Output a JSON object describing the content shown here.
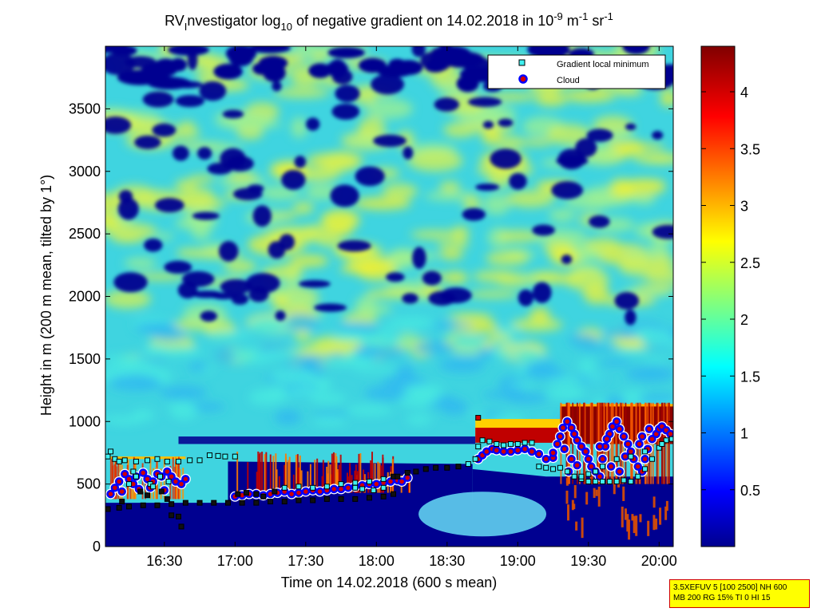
{
  "chart_data": {
    "type": "heatmap",
    "title": {
      "main": "RV",
      "sub": "I",
      "text1": "nvestigator log",
      "log_base": "10",
      "text2": " of negative gradient on 14.02.2018 in 10",
      "exp1": "-9",
      "text3": " m",
      "exp2": "-1",
      "text4": " sr",
      "exp3": "-1"
    },
    "xlabel": "Time on 14.02.2018 (600 s mean)",
    "ylabel": "Height in m (200 m mean, tilted by 1°)",
    "x_range_hours": [
      16.083,
      20.1
    ],
    "ylim": [
      0,
      4000
    ],
    "x_ticks": [
      "16:30",
      "17:00",
      "17:30",
      "18:00",
      "18:30",
      "19:00",
      "19:30",
      "20:00"
    ],
    "x_tick_hours": [
      16.5,
      17.0,
      17.5,
      18.0,
      18.5,
      19.0,
      19.5,
      20.0
    ],
    "y_ticks": [
      0,
      500,
      1000,
      1500,
      2000,
      2500,
      3000,
      3500
    ],
    "colorbar": {
      "range": [
        0,
        4.4
      ],
      "ticks": [
        0.5,
        1,
        1.5,
        2,
        2.5,
        3,
        3.5,
        4
      ],
      "tick_labels": [
        "0.5",
        "1",
        "1.5",
        "2",
        "2.5",
        "3",
        "3.5",
        "4"
      ]
    },
    "legend": {
      "placement": "top-right",
      "entries": [
        "Gradient local minimum",
        "Cloud"
      ]
    },
    "series": [
      {
        "name": "Gradient local minimum",
        "marker": "square",
        "points": [
          [
            16.1,
            720
          ],
          [
            16.12,
            760
          ],
          [
            16.15,
            700
          ],
          [
            16.18,
            680
          ],
          [
            16.22,
            690
          ],
          [
            16.3,
            680
          ],
          [
            16.38,
            690
          ],
          [
            16.45,
            700
          ],
          [
            16.52,
            680
          ],
          [
            16.6,
            680
          ],
          [
            16.68,
            690
          ],
          [
            16.75,
            690
          ],
          [
            16.82,
            730
          ],
          [
            16.88,
            725
          ],
          [
            16.93,
            720
          ],
          [
            17.0,
            720
          ],
          [
            16.1,
            300
          ],
          [
            16.18,
            310
          ],
          [
            16.25,
            320
          ],
          [
            16.35,
            330
          ],
          [
            16.45,
            330
          ],
          [
            16.55,
            340
          ],
          [
            16.65,
            350
          ],
          [
            16.75,
            350
          ],
          [
            16.85,
            350
          ],
          [
            16.95,
            350
          ],
          [
            17.05,
            350
          ],
          [
            17.15,
            350
          ],
          [
            17.25,
            360
          ],
          [
            17.35,
            360
          ],
          [
            17.45,
            370
          ],
          [
            17.55,
            370
          ],
          [
            17.65,
            380
          ],
          [
            17.75,
            380
          ],
          [
            17.85,
            380
          ],
          [
            17.95,
            390
          ],
          [
            18.05,
            400
          ],
          [
            18.12,
            420
          ],
          [
            17.02,
            420
          ],
          [
            17.08,
            430
          ],
          [
            17.15,
            420
          ],
          [
            17.2,
            400
          ],
          [
            17.28,
            440
          ],
          [
            17.35,
            470
          ],
          [
            17.45,
            480
          ],
          [
            17.55,
            470
          ],
          [
            17.65,
            480
          ],
          [
            17.75,
            500
          ],
          [
            17.85,
            510
          ],
          [
            17.95,
            520
          ],
          [
            18.05,
            540
          ],
          [
            18.12,
            560
          ],
          [
            18.15,
            560
          ],
          [
            18.22,
            590
          ],
          [
            18.28,
            600
          ],
          [
            18.35,
            620
          ],
          [
            18.42,
            630
          ],
          [
            18.5,
            630
          ],
          [
            18.58,
            640
          ],
          [
            18.65,
            660
          ],
          [
            18.7,
            700
          ],
          [
            18.72,
            800
          ],
          [
            18.75,
            850
          ],
          [
            18.8,
            840
          ],
          [
            18.85,
            820
          ],
          [
            18.9,
            810
          ],
          [
            18.95,
            820
          ],
          [
            19.0,
            820
          ],
          [
            19.05,
            830
          ],
          [
            19.1,
            830
          ],
          [
            19.15,
            640
          ],
          [
            19.2,
            630
          ],
          [
            19.25,
            620
          ],
          [
            19.3,
            630
          ],
          [
            19.35,
            600
          ],
          [
            19.4,
            560
          ],
          [
            19.45,
            540
          ],
          [
            19.5,
            520
          ],
          [
            19.55,
            520
          ],
          [
            19.6,
            520
          ],
          [
            19.65,
            520
          ],
          [
            19.7,
            520
          ],
          [
            19.75,
            530
          ],
          [
            19.8,
            520
          ],
          [
            19.85,
            560
          ],
          [
            19.9,
            620
          ],
          [
            19.95,
            700
          ],
          [
            20.0,
            790
          ],
          [
            20.05,
            850
          ],
          [
            20.09,
            860
          ],
          [
            16.3,
            560
          ],
          [
            16.4,
            500
          ],
          [
            16.48,
            440
          ],
          [
            16.52,
            380
          ],
          [
            16.55,
            250
          ],
          [
            16.6,
            240
          ],
          [
            16.62,
            160
          ],
          [
            16.2,
            360
          ],
          [
            16.25,
            500
          ],
          [
            16.28,
            600
          ],
          [
            16.33,
            440
          ],
          [
            16.38,
            410
          ],
          [
            16.42,
            480
          ],
          [
            16.47,
            560
          ],
          [
            16.53,
            520
          ],
          [
            17.85,
            470
          ],
          [
            17.9,
            460
          ],
          [
            17.98,
            450
          ],
          [
            18.05,
            470
          ],
          [
            19.6,
            640
          ],
          [
            19.7,
            700
          ],
          [
            19.8,
            720
          ],
          [
            19.9,
            760
          ],
          [
            20.02,
            820
          ],
          [
            19.45,
            560
          ],
          [
            19.5,
            580
          ],
          [
            19.55,
            600
          ]
        ]
      },
      {
        "name": "Cloud",
        "marker": "circle",
        "points": [
          [
            16.12,
            420
          ],
          [
            16.15,
            470
          ],
          [
            16.18,
            520
          ],
          [
            16.22,
            580
          ],
          [
            16.25,
            540
          ],
          [
            16.28,
            500
          ],
          [
            16.3,
            560
          ],
          [
            16.35,
            590
          ],
          [
            16.38,
            540
          ],
          [
            16.42,
            520
          ],
          [
            16.45,
            580
          ],
          [
            16.48,
            560
          ],
          [
            16.52,
            600
          ],
          [
            16.55,
            560
          ],
          [
            16.58,
            520
          ],
          [
            16.62,
            500
          ],
          [
            16.65,
            540
          ],
          [
            16.2,
            440
          ],
          [
            16.32,
            460
          ],
          [
            16.4,
            470
          ],
          [
            16.5,
            450
          ],
          [
            17.0,
            400
          ],
          [
            17.05,
            410
          ],
          [
            17.1,
            420
          ],
          [
            17.15,
            420
          ],
          [
            17.2,
            410
          ],
          [
            17.25,
            420
          ],
          [
            17.3,
            430
          ],
          [
            17.35,
            440
          ],
          [
            17.4,
            420
          ],
          [
            17.45,
            430
          ],
          [
            17.5,
            440
          ],
          [
            17.55,
            450
          ],
          [
            17.6,
            440
          ],
          [
            17.65,
            450
          ],
          [
            17.7,
            460
          ],
          [
            17.75,
            460
          ],
          [
            17.8,
            470
          ],
          [
            17.85,
            480
          ],
          [
            17.9,
            490
          ],
          [
            17.95,
            500
          ],
          [
            18.0,
            500
          ],
          [
            18.05,
            510
          ],
          [
            18.1,
            520
          ],
          [
            18.15,
            530
          ],
          [
            18.18,
            520
          ],
          [
            18.22,
            550
          ],
          [
            18.72,
            700
          ],
          [
            18.75,
            730
          ],
          [
            18.78,
            760
          ],
          [
            18.82,
            780
          ],
          [
            18.85,
            770
          ],
          [
            18.9,
            760
          ],
          [
            18.95,
            760
          ],
          [
            19.0,
            770
          ],
          [
            19.05,
            780
          ],
          [
            19.1,
            760
          ],
          [
            19.15,
            740
          ],
          [
            19.2,
            700
          ],
          [
            19.25,
            710
          ],
          [
            19.25,
            750
          ],
          [
            19.28,
            820
          ],
          [
            19.3,
            880
          ],
          [
            19.32,
            950
          ],
          [
            19.35,
            1000
          ],
          [
            19.38,
            950
          ],
          [
            19.4,
            900
          ],
          [
            19.42,
            850
          ],
          [
            19.45,
            800
          ],
          [
            19.48,
            760
          ],
          [
            19.5,
            700
          ],
          [
            19.52,
            640
          ],
          [
            19.55,
            600
          ],
          [
            19.58,
            560
          ],
          [
            19.6,
            700
          ],
          [
            19.62,
            800
          ],
          [
            19.65,
            900
          ],
          [
            19.67,
            960
          ],
          [
            19.7,
            1000
          ],
          [
            19.72,
            940
          ],
          [
            19.75,
            880
          ],
          [
            19.78,
            820
          ],
          [
            19.8,
            760
          ],
          [
            19.82,
            700
          ],
          [
            19.85,
            640
          ],
          [
            19.88,
            600
          ],
          [
            19.9,
            700
          ],
          [
            19.92,
            780
          ],
          [
            19.95,
            860
          ],
          [
            19.98,
            900
          ],
          [
            20.0,
            940
          ],
          [
            20.02,
            960
          ],
          [
            20.05,
            930
          ],
          [
            20.08,
            900
          ],
          [
            19.58,
            800
          ],
          [
            19.63,
            860
          ],
          [
            19.66,
            640
          ],
          [
            19.72,
            600
          ],
          [
            19.76,
            720
          ],
          [
            19.86,
            820
          ],
          [
            19.88,
            880
          ],
          [
            19.93,
            940
          ],
          [
            19.38,
            700
          ],
          [
            19.42,
            650
          ],
          [
            19.33,
            780
          ],
          [
            19.36,
            600
          ]
        ]
      }
    ],
    "isolated_marker": [
      18.72,
      1030
    ]
  },
  "footnote": {
    "line1": "3.5XEFUV 5 [100 2500] NH 600",
    "line2": "MB 200 RG 15% TI 0 HI 15"
  }
}
